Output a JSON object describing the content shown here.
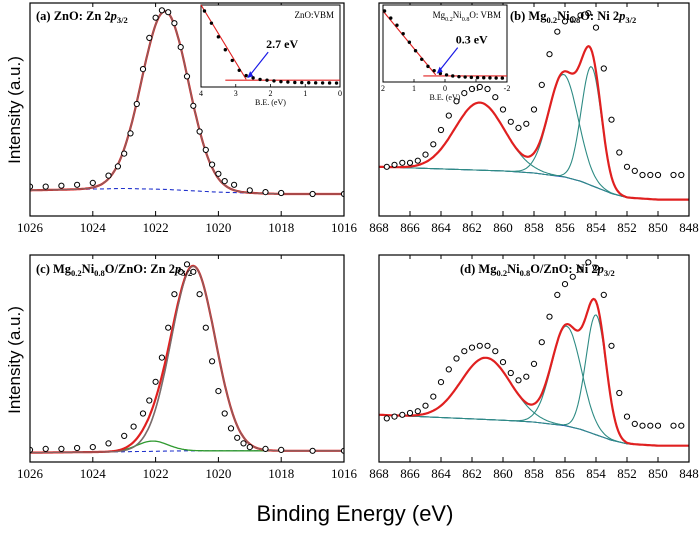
{
  "figure": {
    "xlabel": "Binding Energy (eV)",
    "ylabel": "Intensity (a.u.)"
  },
  "chart_data": [
    {
      "id": "a",
      "type": "line",
      "title": "(a) ZnO: Zn 2p3/2",
      "title_parts": [
        {
          "t": "(a) ZnO: Zn 2"
        },
        {
          "t": "p",
          "italic": true
        },
        {
          "t": "3/2",
          "sub": true
        }
      ],
      "xlabel": "",
      "ylabel": "Intensity (a.u.)",
      "xlim": [
        1026,
        1016
      ],
      "xticks": [
        "1026",
        "1024",
        "1022",
        "1020",
        "1018",
        "1016"
      ],
      "series": [
        {
          "role": "data",
          "style": "circles",
          "x": [
            1026,
            1025.5,
            1025,
            1024.5,
            1024,
            1023.5,
            1023.2,
            1023,
            1022.8,
            1022.6,
            1022.4,
            1022.2,
            1022,
            1021.8,
            1021.6,
            1021.4,
            1021.2,
            1021,
            1020.8,
            1020.6,
            1020.4,
            1020.2,
            1020,
            1019.8,
            1019.5,
            1019,
            1018.5,
            1018,
            1017,
            1016
          ],
          "y": [
            0.04,
            0.04,
            0.045,
            0.05,
            0.06,
            0.1,
            0.15,
            0.22,
            0.33,
            0.49,
            0.68,
            0.85,
            0.96,
            1.0,
            0.99,
            0.93,
            0.8,
            0.64,
            0.48,
            0.34,
            0.24,
            0.16,
            0.11,
            0.07,
            0.05,
            0.02,
            0.01,
            0.005,
            0.0,
            0.0
          ]
        },
        {
          "role": "fit",
          "style": "line-red"
        },
        {
          "role": "component",
          "style": "line-gray",
          "center": 1021.7,
          "width": 0.75,
          "amp": 0.97
        },
        {
          "role": "background",
          "style": "dashed-blue",
          "x": [
            1026,
            1023,
            1021.7,
            1020,
            1018,
            1016
          ],
          "y": [
            0.02,
            0.03,
            0.025,
            0.01,
            0.0,
            0.0
          ]
        }
      ],
      "inset": {
        "title": "ZnO:VBM",
        "xlabel": "B.E. (eV)",
        "xlim": [
          4,
          0
        ],
        "xticks": [
          "4",
          "3",
          "2",
          "1",
          "0"
        ],
        "annotation": "2.7 eV",
        "vbm": 2.7,
        "data": {
          "x": [
            3.9,
            3.7,
            3.5,
            3.3,
            3.1,
            2.9,
            2.7,
            2.5,
            2.3,
            2.1,
            1.9,
            1.7,
            1.5,
            1.3,
            1.1,
            0.9,
            0.7,
            0.5,
            0.3,
            0.1
          ],
          "y": [
            1.0,
            0.84,
            0.66,
            0.49,
            0.35,
            0.22,
            0.15,
            0.12,
            0.1,
            0.09,
            0.08,
            0.07,
            0.065,
            0.06,
            0.058,
            0.056,
            0.055,
            0.054,
            0.053,
            0.052
          ]
        },
        "fit_line": {
          "x": [
            4.0,
            2.7
          ],
          "y": [
            1.08,
            0.1
          ]
        },
        "baseline": {
          "x": [
            3.3,
            0.0
          ],
          "y": [
            0.09,
            0.09
          ]
        },
        "colors": {
          "line": "#e02020",
          "marker": "#000000",
          "arrow": "#1a1ae6"
        }
      }
    },
    {
      "id": "b",
      "type": "line",
      "title": "(b) Mg0.2Ni0.8O: Ni 2p3/2",
      "title_parts": [
        {
          "t": "(b) Mg"
        },
        {
          "t": "0.2",
          "sub": true
        },
        {
          "t": "Ni"
        },
        {
          "t": "0.8",
          "sub": true
        },
        {
          "t": "O: Ni 2"
        },
        {
          "t": "p",
          "italic": true
        },
        {
          "t": "3/2",
          "sub": true
        }
      ],
      "xlim": [
        868,
        848
      ],
      "xticks": [
        "868",
        "866",
        "864",
        "862",
        "860",
        "858",
        "856",
        "854",
        "852",
        "850",
        "848"
      ],
      "series": [
        {
          "role": "data",
          "style": "circles",
          "x": [
            867.5,
            867,
            866.5,
            866,
            865.5,
            865,
            864.5,
            864,
            863.5,
            863,
            862.5,
            862,
            861.5,
            861,
            860.5,
            860,
            859.5,
            859,
            858.5,
            858,
            857.5,
            857,
            856.5,
            856,
            855.5,
            855,
            854.5,
            854,
            853.5,
            853,
            852.5,
            852,
            851.5,
            851,
            850.5,
            850,
            849,
            848.5
          ],
          "y": [
            0.02,
            0.03,
            0.04,
            0.04,
            0.05,
            0.08,
            0.13,
            0.2,
            0.27,
            0.34,
            0.38,
            0.4,
            0.41,
            0.4,
            0.36,
            0.3,
            0.24,
            0.21,
            0.23,
            0.3,
            0.42,
            0.57,
            0.68,
            0.73,
            0.74,
            0.76,
            0.77,
            0.7,
            0.5,
            0.25,
            0.09,
            0.02,
            0.0,
            -0.02,
            -0.02,
            -0.02,
            -0.02,
            -0.02
          ]
        },
        {
          "role": "fit",
          "style": "line-red"
        },
        {
          "role": "component",
          "style": "line-teal",
          "center": 861.5,
          "width": 1.6,
          "amp": 0.33
        },
        {
          "role": "component",
          "style": "line-teal",
          "center": 856.1,
          "width": 0.95,
          "amp": 0.5
        },
        {
          "role": "component",
          "style": "line-teal",
          "center": 854.3,
          "width": 0.65,
          "amp": 0.58
        },
        {
          "role": "background",
          "style": "line-blue",
          "x": [
            868,
            860,
            858,
            856,
            855,
            854,
            853,
            852,
            850,
            848
          ],
          "y": [
            0.02,
            0.0,
            -0.01,
            -0.03,
            -0.05,
            -0.08,
            -0.11,
            -0.13,
            -0.14,
            -0.14
          ]
        }
      ],
      "inset": {
        "title": "Mg0.2Ni0.8O: VBM",
        "title_parts": [
          {
            "t": "Mg"
          },
          {
            "t": "0.2",
            "sub": true
          },
          {
            "t": "Ni"
          },
          {
            "t": "0.8",
            "sub": true
          },
          {
            "t": "O: VBM"
          }
        ],
        "xlabel": "B.E. (eV)",
        "xlim": [
          2,
          -2
        ],
        "xticks": [
          "2",
          "1",
          "0",
          "-1",
          "-2"
        ],
        "annotation": "0.3 eV",
        "vbm": 0.3,
        "data": {
          "x": [
            1.95,
            1.75,
            1.55,
            1.35,
            1.15,
            0.95,
            0.75,
            0.55,
            0.35,
            0.15,
            -0.05,
            -0.25,
            -0.45,
            -0.65,
            -0.85,
            -1.05,
            -1.25,
            -1.45,
            -1.65,
            -1.85
          ],
          "y": [
            1.0,
            0.9,
            0.8,
            0.68,
            0.56,
            0.44,
            0.32,
            0.22,
            0.16,
            0.12,
            0.1,
            0.085,
            0.075,
            0.07,
            0.065,
            0.062,
            0.06,
            0.058,
            0.056,
            0.055
          ]
        },
        "fit_line": {
          "x": [
            2.0,
            0.3
          ],
          "y": [
            1.0,
            0.1
          ]
        },
        "baseline": {
          "x": [
            0.7,
            -2.0
          ],
          "y": [
            0.085,
            0.085
          ]
        },
        "colors": {
          "line": "#e02020",
          "marker": "#000000",
          "arrow": "#1a1ae6"
        }
      }
    },
    {
      "id": "c",
      "type": "line",
      "title": "(c) Mg0.2Ni0.8O/ZnO: Zn 2p3/2",
      "title_parts": [
        {
          "t": "(c) Mg"
        },
        {
          "t": "0.2",
          "sub": true
        },
        {
          "t": "Ni"
        },
        {
          "t": "0.8",
          "sub": true
        },
        {
          "t": "O/ZnO: Zn 2"
        },
        {
          "t": "p",
          "italic": true
        },
        {
          "t": "3/2",
          "sub": true
        }
      ],
      "ylabel": "Intensity (a.u.)",
      "xlim": [
        1026,
        1016
      ],
      "xticks": [
        "1026",
        "1024",
        "1022",
        "1020",
        "1018",
        "1016"
      ],
      "series": [
        {
          "role": "data",
          "style": "circles",
          "x": [
            1026,
            1025.5,
            1025,
            1024.5,
            1024,
            1023.5,
            1023,
            1022.7,
            1022.4,
            1022.2,
            1022,
            1021.8,
            1021.6,
            1021.4,
            1021.2,
            1021,
            1020.8,
            1020.6,
            1020.4,
            1020.2,
            1020,
            1019.8,
            1019.6,
            1019.4,
            1019.2,
            1019,
            1018.5,
            1018,
            1017,
            1016
          ],
          "y": [
            0.005,
            0.01,
            0.01,
            0.015,
            0.02,
            0.04,
            0.08,
            0.13,
            0.2,
            0.27,
            0.37,
            0.5,
            0.66,
            0.84,
            0.96,
            1.0,
            0.96,
            0.84,
            0.66,
            0.48,
            0.32,
            0.2,
            0.12,
            0.07,
            0.04,
            0.02,
            0.01,
            0.005,
            0.0,
            0.0
          ]
        },
        {
          "role": "fit",
          "style": "line-red"
        },
        {
          "role": "component",
          "style": "line-gray",
          "center": 1020.8,
          "width": 0.7,
          "amp": 0.99
        },
        {
          "role": "component",
          "style": "line-green",
          "center": 1022.1,
          "width": 0.5,
          "amp": 0.055
        },
        {
          "role": "background",
          "style": "dashed-blue",
          "x": [
            1026,
            1023,
            1021,
            1019,
            1016
          ],
          "y": [
            -0.01,
            -0.005,
            0.0,
            0.0,
            0.0
          ]
        }
      ]
    },
    {
      "id": "d",
      "type": "line",
      "title": "(d) Mg0.2Ni0.8O/ZnO: Ni 2p3/2",
      "title_parts": [
        {
          "t": "(d) Mg"
        },
        {
          "t": "0.2",
          "sub": true
        },
        {
          "t": "Ni"
        },
        {
          "t": "0.8",
          "sub": true
        },
        {
          "t": "O/ZnO: Ni 2"
        },
        {
          "t": "p",
          "italic": true
        },
        {
          "t": "3/2",
          "sub": true
        }
      ],
      "xlim": [
        868,
        848
      ],
      "xticks": [
        "868",
        "866",
        "864",
        "862",
        "860",
        "858",
        "856",
        "854",
        "852",
        "850",
        "848"
      ],
      "series": [
        {
          "role": "data",
          "style": "circles",
          "x": [
            867.5,
            867,
            866.5,
            866,
            865.5,
            865,
            864.5,
            864,
            863.5,
            863,
            862.5,
            862,
            861.5,
            861,
            860.5,
            860,
            859.5,
            859,
            858.5,
            858,
            857.5,
            857,
            856.5,
            856,
            855.5,
            855,
            854.5,
            854,
            853.5,
            853,
            852.5,
            852,
            851.5,
            851,
            850.5,
            850,
            849,
            848.5
          ],
          "y": [
            0.02,
            0.03,
            0.04,
            0.05,
            0.06,
            0.09,
            0.14,
            0.22,
            0.29,
            0.35,
            0.39,
            0.41,
            0.42,
            0.42,
            0.39,
            0.33,
            0.27,
            0.23,
            0.25,
            0.32,
            0.44,
            0.58,
            0.7,
            0.76,
            0.8,
            0.84,
            0.88,
            0.85,
            0.7,
            0.42,
            0.16,
            0.03,
            -0.01,
            -0.02,
            -0.02,
            -0.02,
            -0.02,
            -0.02
          ]
        },
        {
          "role": "fit",
          "style": "line-red"
        },
        {
          "role": "component",
          "style": "line-teal",
          "center": 861.1,
          "width": 1.6,
          "amp": 0.34
        },
        {
          "role": "component",
          "style": "line-teal",
          "center": 855.9,
          "width": 0.95,
          "amp": 0.55
        },
        {
          "role": "component",
          "style": "line-teal",
          "center": 854.0,
          "width": 0.65,
          "amp": 0.66
        },
        {
          "role": "background",
          "style": "line-blue",
          "x": [
            868,
            860,
            858,
            856,
            855,
            854,
            853,
            852,
            850,
            848
          ],
          "y": [
            0.04,
            0.01,
            0.0,
            -0.02,
            -0.04,
            -0.07,
            -0.1,
            -0.12,
            -0.13,
            -0.13
          ]
        }
      ]
    }
  ],
  "colors": {
    "fit": "#e02020",
    "component_gray": "#7a6c6c",
    "component_teal": "#2e8b84",
    "component_green": "#2f9a2f",
    "background": "#2233cc",
    "marker": "#000000",
    "axis": "#000000"
  }
}
